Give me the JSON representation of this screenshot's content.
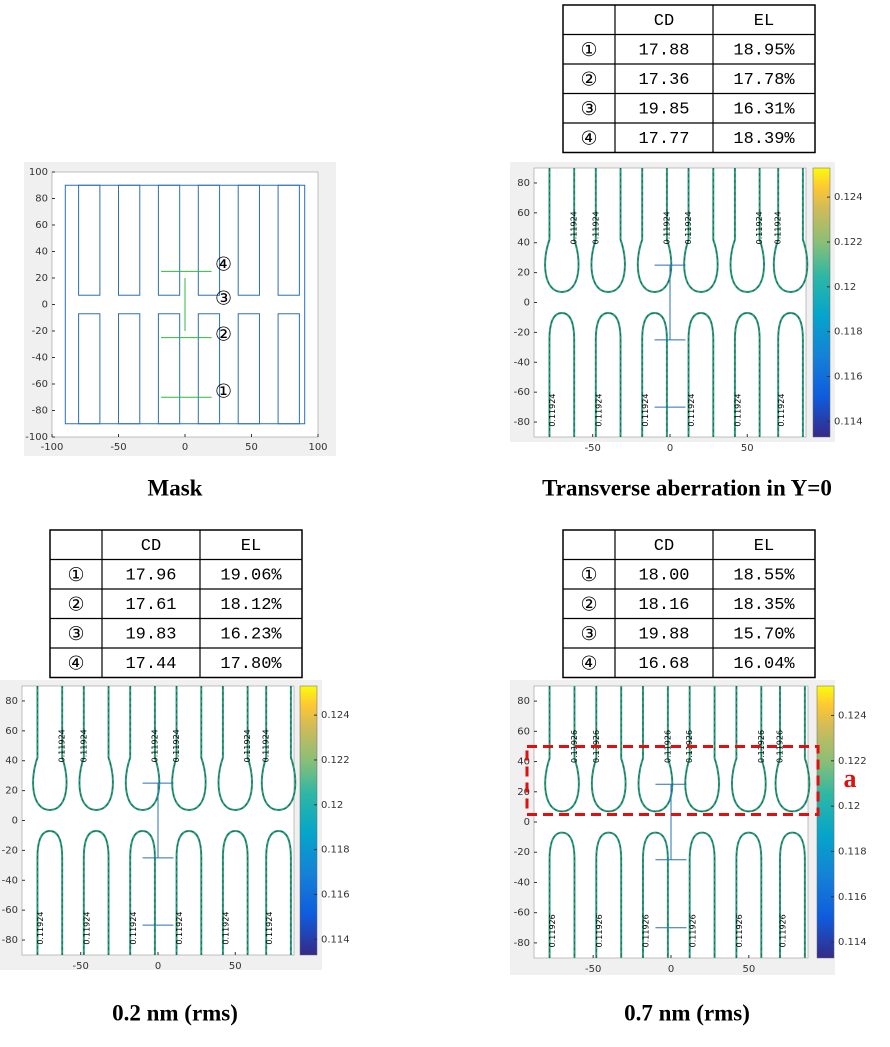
{
  "mask": {
    "caption": "Mask",
    "xlim": [
      -100,
      100
    ],
    "ylim": [
      -100,
      100
    ],
    "xticks": [
      -100,
      -50,
      0,
      50,
      100
    ],
    "yticks": [
      -100,
      -80,
      -60,
      -40,
      -20,
      0,
      20,
      40,
      60,
      80,
      100
    ],
    "markers": [
      "①",
      "②",
      "③",
      "④"
    ]
  },
  "panels": [
    {
      "caption": "Transverse aberration in Y=0",
      "table": {
        "header": [
          "CD",
          "EL"
        ],
        "rows": [
          [
            "①",
            "17.88",
            "18.95%"
          ],
          [
            "②",
            "17.36",
            "17.78%"
          ],
          [
            "③",
            "19.85",
            "16.31%"
          ],
          [
            "④",
            "17.77",
            "18.39%"
          ]
        ]
      },
      "xlim": [
        -88,
        88
      ],
      "ylim": [
        -90,
        90
      ],
      "xticks": [
        -50,
        0,
        50
      ],
      "yticks": [
        -80,
        -60,
        -40,
        -20,
        0,
        20,
        40,
        60,
        80
      ],
      "clim": [
        0.1133,
        0.1253
      ],
      "cticks": [
        0.114,
        0.116,
        0.118,
        0.12,
        0.122,
        0.124
      ],
      "contour_label": "0.11924"
    },
    {
      "caption": "0.2 nm (rms)",
      "table": {
        "header": [
          "CD",
          "EL"
        ],
        "rows": [
          [
            "①",
            "17.96",
            "19.06%"
          ],
          [
            "②",
            "17.61",
            "18.12%"
          ],
          [
            "③",
            "19.83",
            "16.23%"
          ],
          [
            "④",
            "17.44",
            "17.80%"
          ]
        ]
      },
      "xlim": [
        -88,
        88
      ],
      "ylim": [
        -90,
        90
      ],
      "xticks": [
        -50,
        0,
        50
      ],
      "yticks": [
        -80,
        -60,
        -40,
        -20,
        0,
        20,
        40,
        60,
        80
      ],
      "clim": [
        0.1133,
        0.1253
      ],
      "cticks": [
        0.114,
        0.116,
        0.118,
        0.12,
        0.122,
        0.124
      ],
      "contour_label": "0.11924"
    },
    {
      "caption": "0.7 nm (rms)",
      "table": {
        "header": [
          "CD",
          "EL"
        ],
        "rows": [
          [
            "①",
            "18.00",
            "18.55%"
          ],
          [
            "②",
            "18.16",
            "18.35%"
          ],
          [
            "③",
            "19.88",
            "15.70%"
          ],
          [
            "④",
            "16.68",
            "16.04%"
          ]
        ]
      },
      "xlim": [
        -88,
        88
      ],
      "ylim": [
        -90,
        90
      ],
      "xticks": [
        -50,
        0,
        50
      ],
      "yticks": [
        -80,
        -60,
        -40,
        -20,
        0,
        20,
        40,
        60,
        80
      ],
      "clim": [
        0.1133,
        0.1253
      ],
      "cticks": [
        0.114,
        0.116,
        0.118,
        0.12,
        0.122,
        0.124
      ],
      "contour_label": "0.11926",
      "annotation": "a"
    }
  ]
}
